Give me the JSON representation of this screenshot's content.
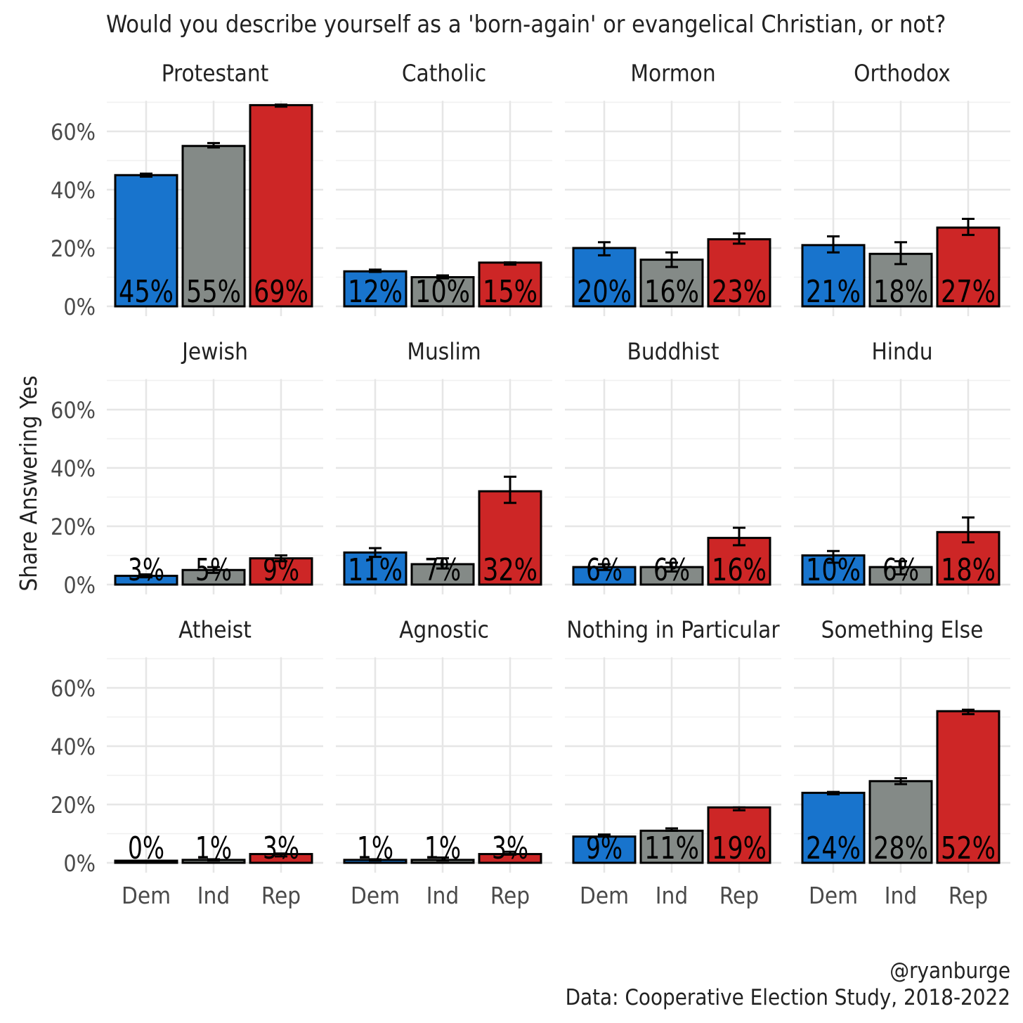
{
  "chart_data": {
    "type": "bar",
    "title": "Would you describe yourself as a 'born-again' or evangelical Christian, or not?",
    "ylabel": "Share Answering Yes",
    "xlabel": "",
    "categories": [
      "Dem",
      "Ind",
      "Rep"
    ],
    "y_ticks": [
      "0%",
      "20%",
      "40%",
      "60%"
    ],
    "ylim": [
      0,
      70
    ],
    "grid": true,
    "legend": "none",
    "colors": {
      "Dem": "#1874CD",
      "Ind": "#848A87",
      "Rep": "#CD2626"
    },
    "panels": [
      {
        "title": "Protestant",
        "values": [
          45,
          55,
          69
        ],
        "labels": [
          "45%",
          "55%",
          "69%"
        ],
        "error": [
          [
            44.5,
            45.5
          ],
          [
            54.5,
            56
          ],
          [
            68.5,
            69.2
          ]
        ]
      },
      {
        "title": "Catholic",
        "values": [
          12,
          10,
          15
        ],
        "labels": [
          "12%",
          "10%",
          "15%"
        ],
        "error": [
          [
            11.8,
            12.6
          ],
          [
            9.6,
            10.6
          ],
          [
            14.3,
            15.1
          ]
        ]
      },
      {
        "title": "Mormon",
        "values": [
          20,
          16,
          23
        ],
        "labels": [
          "20%",
          "16%",
          "23%"
        ],
        "error": [
          [
            17.5,
            22
          ],
          [
            13.5,
            18.5
          ],
          [
            21.5,
            25
          ]
        ]
      },
      {
        "title": "Orthodox",
        "values": [
          21,
          18,
          27
        ],
        "labels": [
          "21%",
          "18%",
          "27%"
        ],
        "error": [
          [
            18.5,
            24
          ],
          [
            14.5,
            22
          ],
          [
            24.5,
            30
          ]
        ]
      },
      {
        "title": "Jewish",
        "values": [
          3,
          5,
          9
        ],
        "labels": [
          "3%",
          "5%",
          "9%"
        ],
        "error": [
          [
            2.5,
            3.5
          ],
          [
            4,
            6
          ],
          [
            8,
            10
          ]
        ]
      },
      {
        "title": "Muslim",
        "values": [
          11,
          7,
          32
        ],
        "labels": [
          "11%",
          "7%",
          "32%"
        ],
        "error": [
          [
            9.5,
            12.5
          ],
          [
            5.5,
            9
          ],
          [
            28,
            37
          ]
        ]
      },
      {
        "title": "Buddhist",
        "values": [
          6,
          6,
          16
        ],
        "labels": [
          "6%",
          "6%",
          "16%"
        ],
        "error": [
          [
            5,
            7
          ],
          [
            4.5,
            7.5
          ],
          [
            13.5,
            19.5
          ]
        ]
      },
      {
        "title": "Hindu",
        "values": [
          10,
          6,
          18
        ],
        "labels": [
          "10%",
          "6%",
          "18%"
        ],
        "error": [
          [
            7.5,
            11.5
          ],
          [
            3.5,
            8
          ],
          [
            14.5,
            23
          ]
        ]
      },
      {
        "title": "Atheist",
        "values": [
          0,
          1,
          3
        ],
        "labels": [
          "0%",
          "1%",
          "3%"
        ],
        "error": [
          [
            0.3,
            0.7
          ],
          [
            0.8,
            1.2
          ],
          [
            2.2,
            3.2
          ]
        ]
      },
      {
        "title": "Agnostic",
        "values": [
          1,
          1,
          3
        ],
        "labels": [
          "1%",
          "1%",
          "3%"
        ],
        "error": [
          [
            0.8,
            1.2
          ],
          [
            0.8,
            1.8
          ],
          [
            2.8,
            3.8
          ]
        ]
      },
      {
        "title": "Nothing in Particular",
        "values": [
          9,
          11,
          19
        ],
        "labels": [
          "9%",
          "11%",
          "19%"
        ],
        "error": [
          [
            9,
            9.7
          ],
          [
            11,
            11.8
          ],
          [
            18,
            19
          ]
        ]
      },
      {
        "title": "Something Else",
        "values": [
          24,
          28,
          52
        ],
        "labels": [
          "24%",
          "28%",
          "52%"
        ],
        "error": [
          [
            23.5,
            24.3
          ],
          [
            27,
            29
          ],
          [
            51,
            52.5
          ]
        ]
      }
    ]
  },
  "credits": {
    "handle": "@ryanburge",
    "source": "Data: Cooperative Election Study, 2018-2022"
  }
}
